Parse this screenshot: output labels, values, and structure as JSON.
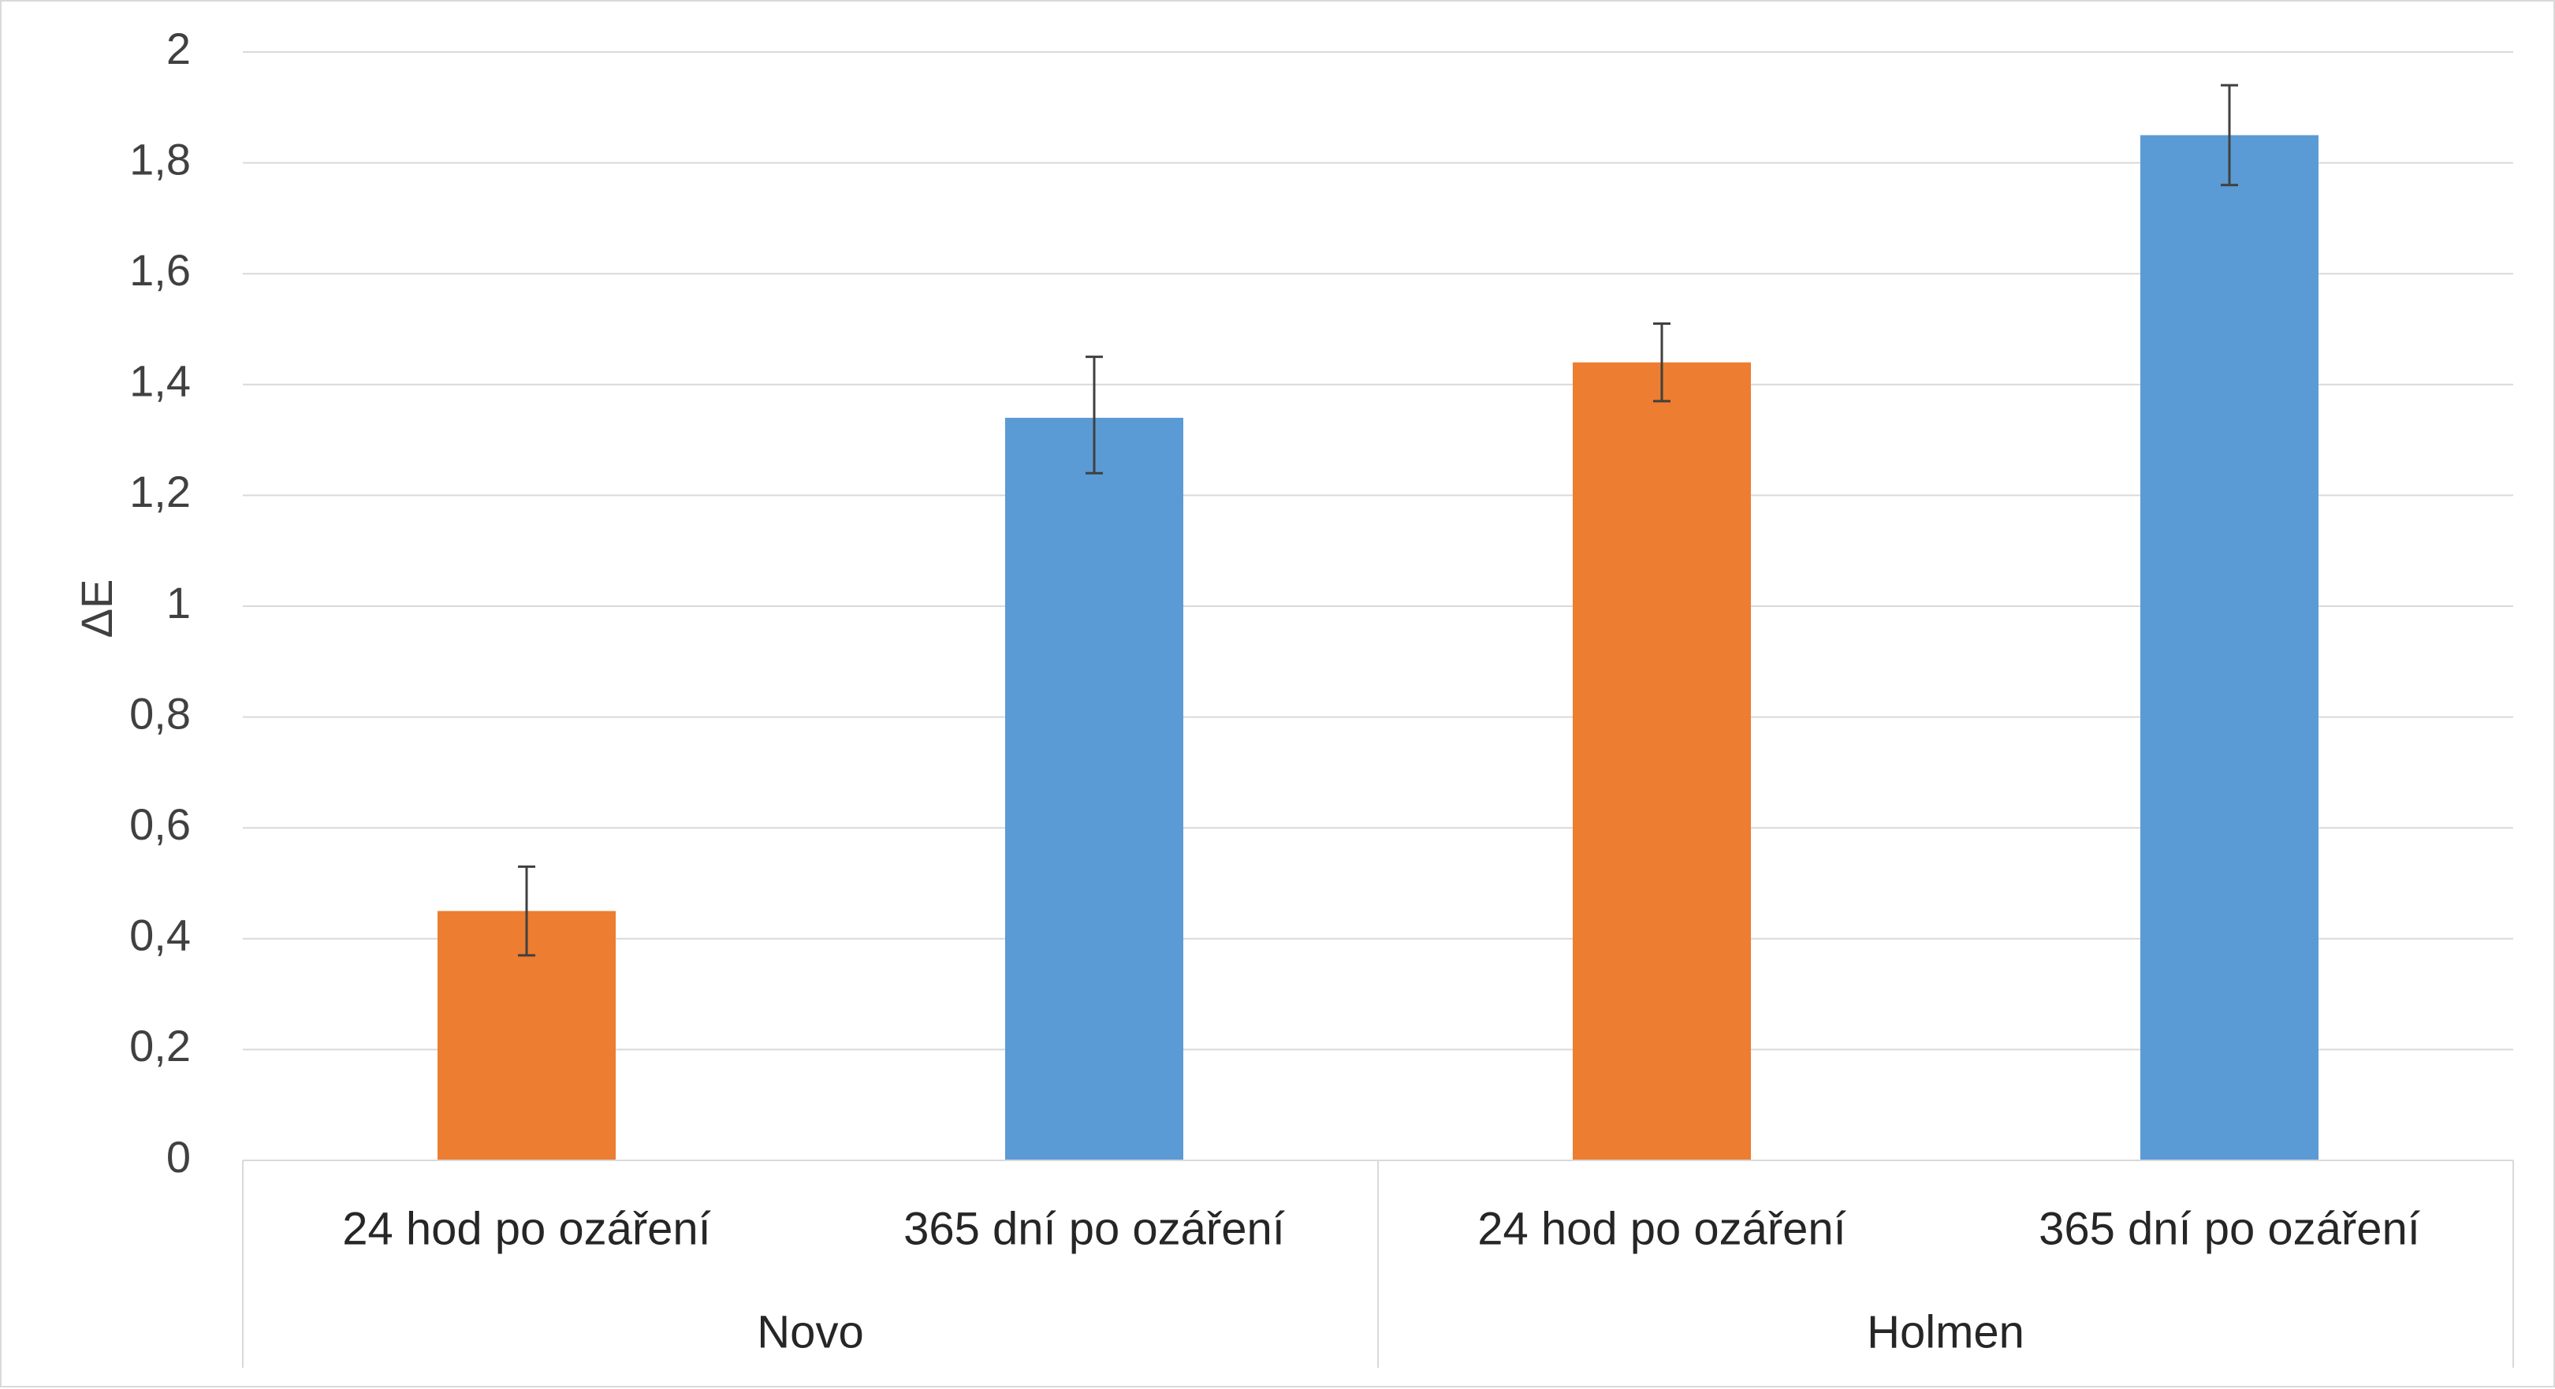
{
  "chart_data": {
    "type": "bar",
    "ylabel": "ΔE",
    "ylim": [
      0,
      2
    ],
    "yticks": [
      "0",
      "0,2",
      "0,4",
      "0,6",
      "0,8",
      "1",
      "1,2",
      "1,4",
      "1,6",
      "1,8",
      "2"
    ],
    "groups": [
      "Novo",
      "Holmen"
    ],
    "categories": [
      "24 hod po ozáření",
      "365 dní po ozáření",
      "24 hod po ozáření",
      "365 dní po ozáření"
    ],
    "bars": [
      {
        "group": "Novo",
        "label": "24 hod po ozáření",
        "value": 0.45,
        "err_low": 0.37,
        "err_high": 0.53,
        "color": "#ED7D31"
      },
      {
        "group": "Novo",
        "label": "365 dní po ozáření",
        "value": 1.34,
        "err_low": 1.24,
        "err_high": 1.45,
        "color": "#5B9BD5"
      },
      {
        "group": "Holmen",
        "label": "24 hod po ozáření",
        "value": 1.44,
        "err_low": 1.37,
        "err_high": 1.51,
        "color": "#ED7D31"
      },
      {
        "group": "Holmen",
        "label": "365 dní po ozáření",
        "value": 1.85,
        "err_low": 1.76,
        "err_high": 1.94,
        "color": "#5B9BD5"
      }
    ],
    "grid": true,
    "legend": "none"
  }
}
